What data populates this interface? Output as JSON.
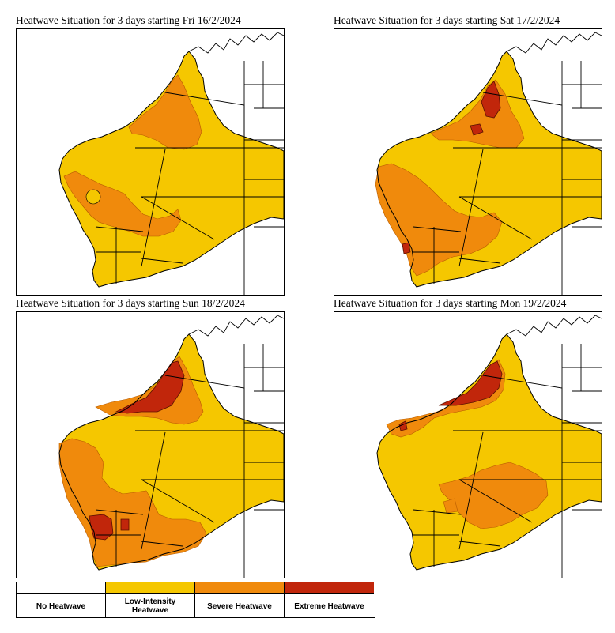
{
  "panels": [
    {
      "title": "Heatwave Situation for 3 days starting Fri 16/2/2024",
      "variant": "fri"
    },
    {
      "title": "Heatwave Situation for 3 days starting Sat 17/2/2024",
      "variant": "sat"
    },
    {
      "title": "Heatwave Situation for 3 days starting Sun 18/2/2024",
      "variant": "sun"
    },
    {
      "title": "Heatwave Situation for 3 days starting Mon 19/2/2024",
      "variant": "mon"
    }
  ],
  "legend": [
    {
      "label": "No Heatwave",
      "color": "#ffffff"
    },
    {
      "label": "Low-Intensity Heatwave",
      "color": "#f5c700"
    },
    {
      "label": "Severe Heatwave",
      "color": "#f08a0c"
    },
    {
      "label": "Extreme Heatwave",
      "color": "#c1260b"
    }
  ],
  "colors": {
    "none": "#ffffff",
    "low": "#f5c700",
    "severe": "#f08a0c",
    "extreme": "#c1260b",
    "outline": "#000000"
  }
}
